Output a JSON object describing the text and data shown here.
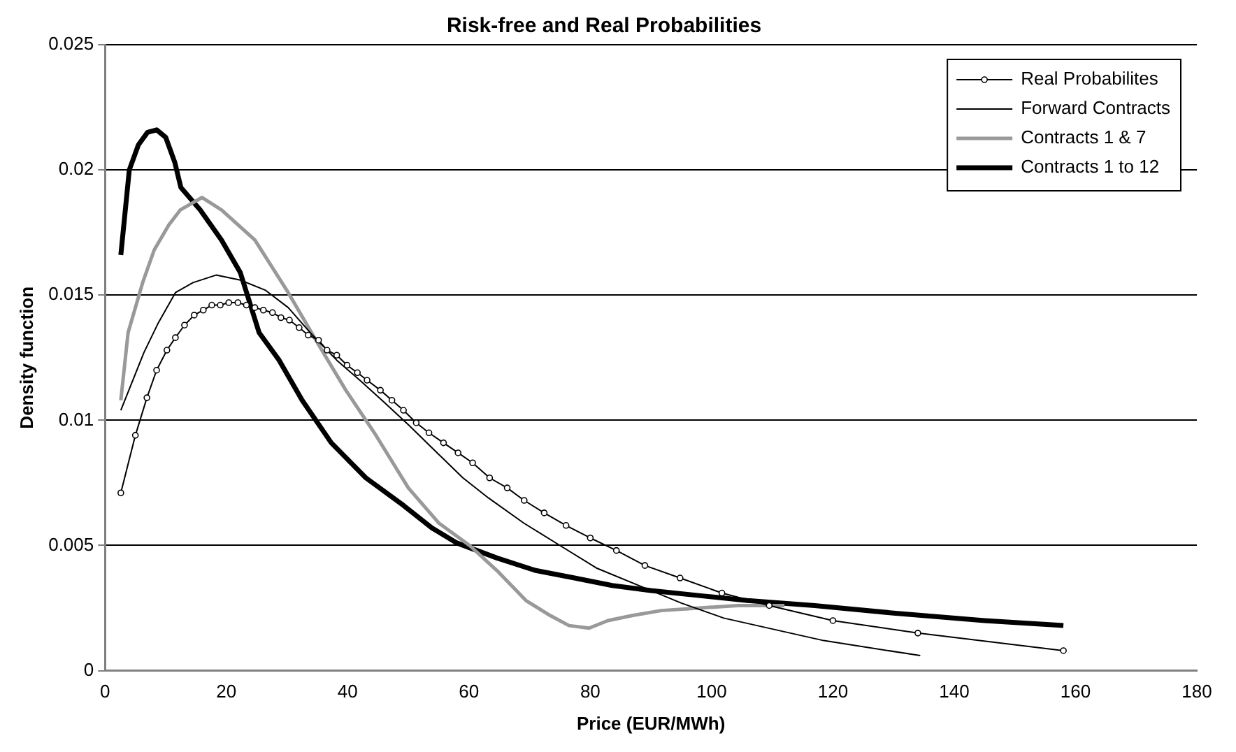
{
  "chart_data": {
    "type": "line",
    "title": "Risk-free and Real Probabilities",
    "xlabel": "Price (EUR/MWh)",
    "ylabel": "Density function",
    "xlim": [
      0,
      180
    ],
    "xticks": [
      0,
      20,
      40,
      60,
      80,
      100,
      120,
      140,
      160,
      180
    ],
    "ylim": [
      0,
      0.025
    ],
    "yticks": [
      0,
      0.005,
      0.01,
      0.015,
      0.02,
      0.025
    ],
    "grid": "y",
    "legend": "top right",
    "series": [
      {
        "name": "Real Probabilites",
        "color": "#000000",
        "marker": "circle",
        "x": [
          2.6,
          5,
          6.9,
          8.5,
          10.2,
          11.6,
          13.1,
          14.7,
          16.2,
          17.6,
          19,
          20.4,
          21.9,
          23.3,
          24.7,
          26.1,
          27.6,
          29,
          30.4,
          32,
          33.5,
          35.2,
          36.6,
          38.2,
          39.9,
          41.6,
          43.2,
          45.4,
          47.3,
          49.2,
          51.3,
          53.4,
          55.8,
          58.2,
          60.6,
          63.4,
          66.3,
          69.1,
          72.4,
          76,
          80,
          84.3,
          89,
          94.8,
          101.7,
          109.5,
          120,
          134,
          158
        ],
        "values": [
          0.0071,
          0.0094,
          0.0109,
          0.012,
          0.0128,
          0.0133,
          0.0138,
          0.0142,
          0.0144,
          0.0146,
          0.0146,
          0.0147,
          0.0147,
          0.0146,
          0.0145,
          0.0144,
          0.0143,
          0.0141,
          0.014,
          0.0137,
          0.0134,
          0.0132,
          0.0128,
          0.0126,
          0.0122,
          0.0119,
          0.0116,
          0.0112,
          0.0108,
          0.0104,
          0.0099,
          0.0095,
          0.0091,
          0.0087,
          0.0083,
          0.0077,
          0.0073,
          0.0068,
          0.0063,
          0.0058,
          0.0053,
          0.0048,
          0.0042,
          0.0037,
          0.0031,
          0.0026,
          0.002,
          0.0015,
          0.0008
        ]
      },
      {
        "name": "Forward Contracts",
        "color": "#000000",
        "marker": "none",
        "x": [
          2.6,
          6.4,
          8.8,
          11.6,
          14.5,
          18.3,
          22.3,
          26.4,
          30.2,
          34.2,
          38.2,
          42,
          46.1,
          50.1,
          53.9,
          59,
          63.2,
          69,
          75,
          81,
          89,
          95,
          102,
          118.5,
          134.4
        ],
        "values": [
          0.0104,
          0.0127,
          0.0139,
          0.0151,
          0.0155,
          0.0158,
          0.0156,
          0.0152,
          0.0145,
          0.0134,
          0.0124,
          0.0116,
          0.0107,
          0.0098,
          0.0089,
          0.0077,
          0.0069,
          0.0059,
          0.005,
          0.0041,
          0.0033,
          0.0027,
          0.0021,
          0.0012,
          0.0006
        ]
      },
      {
        "name": "Contracts 1 & 7",
        "color": "#999999",
        "marker": "none",
        "x": [
          2.6,
          3.8,
          6.2,
          8.1,
          10.5,
          12.4,
          16,
          19.2,
          24.7,
          30.2,
          35,
          39.7,
          44.4,
          50,
          55,
          60.1,
          64.6,
          69.4,
          73.4,
          76.5,
          79.8,
          82.9,
          86.9,
          91.7,
          97.9,
          104.3,
          112
        ],
        "values": [
          0.0108,
          0.0135,
          0.0155,
          0.0168,
          0.0178,
          0.0184,
          0.0189,
          0.0184,
          0.0172,
          0.0151,
          0.0131,
          0.0112,
          0.0095,
          0.0073,
          0.0059,
          0.005,
          0.004,
          0.0028,
          0.0022,
          0.0018,
          0.0017,
          0.002,
          0.0022,
          0.0024,
          0.0025,
          0.0026,
          0.0026
        ]
      },
      {
        "name": "Contracts 1 to 12",
        "color": "#000000",
        "marker": "none",
        "x": [
          2.6,
          4,
          5.5,
          7,
          8.5,
          10,
          11.5,
          12.5,
          15.7,
          19.2,
          22.3,
          25.4,
          28.7,
          32.5,
          37.3,
          43,
          49.2,
          53.9,
          58,
          64.6,
          71,
          77.4,
          83.6,
          90,
          97.9,
          105.9,
          117,
          130,
          145,
          158
        ],
        "values": [
          0.0166,
          0.02,
          0.021,
          0.0215,
          0.0216,
          0.0213,
          0.0203,
          0.0193,
          0.0184,
          0.0172,
          0.0159,
          0.0135,
          0.0124,
          0.0108,
          0.0091,
          0.0077,
          0.0066,
          0.0057,
          0.0051,
          0.0045,
          0.004,
          0.0037,
          0.0034,
          0.0032,
          0.003,
          0.0028,
          0.0026,
          0.0023,
          0.002,
          0.0018
        ]
      }
    ]
  }
}
